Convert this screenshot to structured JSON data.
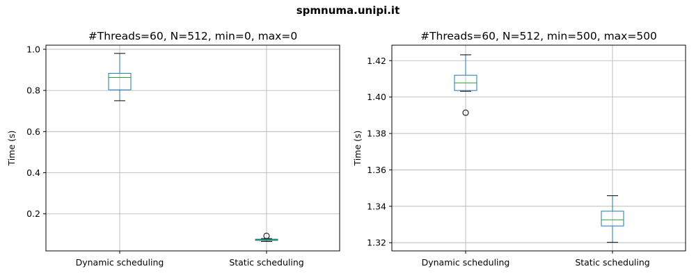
{
  "figure_title": "spmnuma.unipi.it",
  "chart_data": [
    {
      "type": "boxplot",
      "title": "#Threads=60, N=512, min=0, max=0",
      "xlabel": "",
      "ylabel": "Time (s)",
      "categories": [
        "Dynamic scheduling",
        "Static scheduling"
      ],
      "ylim": [
        0.02,
        1.02
      ],
      "yticks": [
        0.2,
        0.4,
        0.6,
        0.8,
        1.0
      ],
      "ytick_labels": [
        "0.2",
        "0.4",
        "0.6",
        "0.8",
        "1.0"
      ],
      "grid": true,
      "boxes": [
        {
          "whisker_low": 0.75,
          "q1": 0.803,
          "median": 0.863,
          "q3": 0.883,
          "whisker_high": 0.98,
          "outliers": []
        },
        {
          "whisker_low": 0.066,
          "q1": 0.071,
          "median": 0.074,
          "q3": 0.077,
          "whisker_high": 0.08,
          "outliers": [
            0.093
          ]
        }
      ]
    },
    {
      "type": "boxplot",
      "title": "#Threads=60, N=512, min=500, max=500",
      "xlabel": "",
      "ylabel": "Time (s)",
      "categories": [
        "Dynamic scheduling",
        "Static scheduling"
      ],
      "ylim": [
        1.3155,
        1.4285
      ],
      "yticks": [
        1.32,
        1.34,
        1.36,
        1.38,
        1.4,
        1.42
      ],
      "ytick_labels": [
        "1.32",
        "1.34",
        "1.36",
        "1.38",
        "1.40",
        "1.42"
      ],
      "grid": true,
      "boxes": [
        {
          "whisker_low": 1.4032,
          "q1": 1.4036,
          "median": 1.4078,
          "q3": 1.412,
          "whisker_high": 1.4232,
          "outliers": [
            1.3914
          ]
        },
        {
          "whisker_low": 1.3202,
          "q1": 1.3292,
          "median": 1.3326,
          "q3": 1.3373,
          "whisker_high": 1.3458,
          "outliers": []
        }
      ]
    }
  ],
  "colors": {
    "box": "#1f77b4",
    "median": "#2ca02c",
    "whisker": "#000000",
    "grid": "#b0b0b0",
    "axes": "#000000"
  }
}
